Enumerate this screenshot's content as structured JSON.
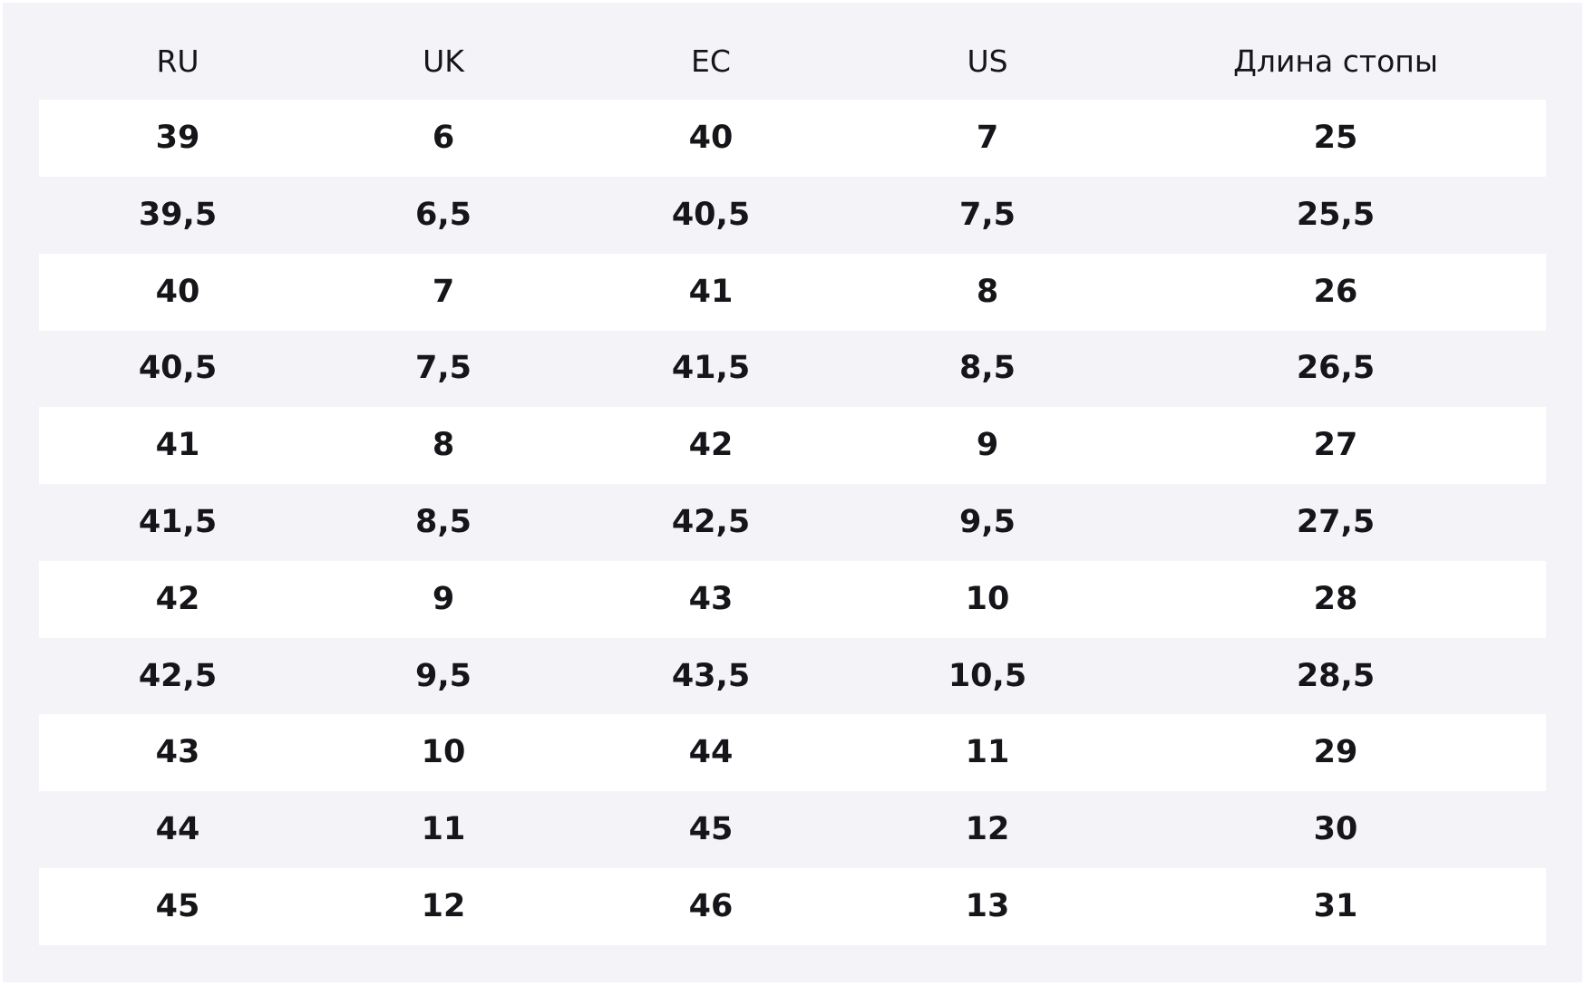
{
  "table": {
    "header": [
      "RU",
      "UK",
      "EC",
      "US",
      "Длина стопы"
    ],
    "rows": [
      [
        "39",
        "6",
        "40",
        "7",
        "25"
      ],
      [
        "39,5",
        "6,5",
        "40,5",
        "7,5",
        "25,5"
      ],
      [
        "40",
        "7",
        "41",
        "8",
        "26"
      ],
      [
        "40,5",
        "7,5",
        "41,5",
        "8,5",
        "26,5"
      ],
      [
        "41",
        "8",
        "42",
        "9",
        "27"
      ],
      [
        "41,5",
        "8,5",
        "42,5",
        "9,5",
        "27,5"
      ],
      [
        "42",
        "9",
        "43",
        "10",
        "28"
      ],
      [
        "42,5",
        "9,5",
        "43,5",
        "10,5",
        "28,5"
      ],
      [
        "43",
        "10",
        "44",
        "11",
        "29"
      ],
      [
        "44",
        "11",
        "45",
        "12",
        "30"
      ],
      [
        "45",
        "12",
        "46",
        "13",
        "31"
      ]
    ]
  }
}
